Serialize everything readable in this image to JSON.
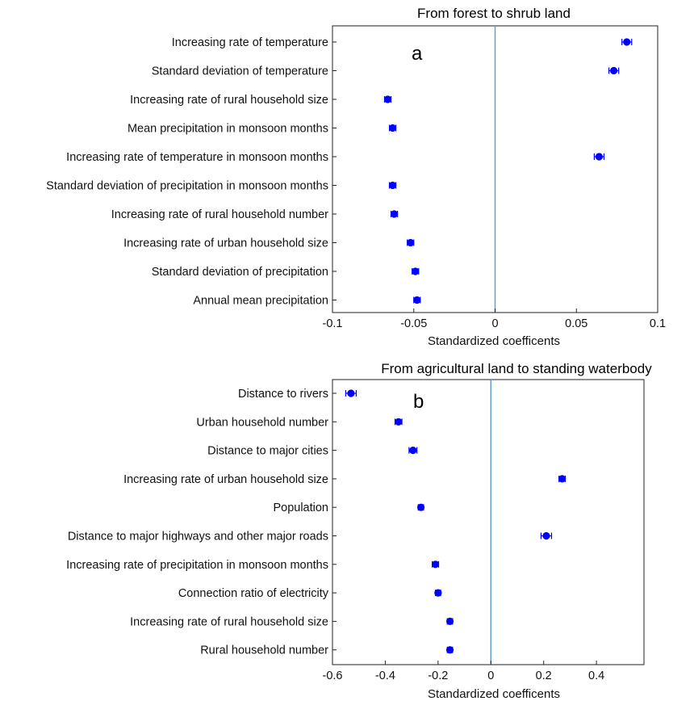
{
  "chart_data": [
    {
      "type": "scatter",
      "title": "From forest to shrub land",
      "panel_label": "a",
      "xlabel": "Standardized coefficents",
      "xlim": [
        -0.1,
        0.1
      ],
      "xticks": [
        "-0.1",
        "-0.05",
        "0",
        "0.05",
        "0.1"
      ],
      "xtick_values": [
        -0.1,
        -0.05,
        0,
        0.05,
        0.1
      ],
      "reference_line": 0,
      "grid": false,
      "marker_color": "#0000ff",
      "reference_line_color": "#5b9bd5",
      "categories": [
        "Increasing rate of temperature",
        "Standard deviation of temperature",
        "Increasing rate of rural household size",
        "Mean precipitation in monsoon months",
        "Increasing rate of temperature in monsoon months",
        "Standard deviation of precipitation in monsoon months",
        "Increasing rate of rural household number",
        "Increasing rate of urban household size",
        "Standard deviation of precipitation",
        "Annual mean precipitation"
      ],
      "values": [
        0.081,
        0.073,
        -0.066,
        -0.063,
        0.064,
        -0.063,
        -0.062,
        -0.052,
        -0.049,
        -0.048
      ],
      "errors": [
        0.003,
        0.003,
        0.002,
        0.002,
        0.003,
        0.002,
        0.002,
        0.002,
        0.002,
        0.002
      ]
    },
    {
      "type": "scatter",
      "title": "From agricultural land to standing waterbody",
      "panel_label": "b",
      "xlabel": "Standardized coefficents",
      "xlim": [
        -0.6,
        0.58
      ],
      "xticks": [
        "-0.6",
        "-0.4",
        "-0.2",
        "0",
        "0.2",
        "0.4"
      ],
      "xtick_values": [
        -0.6,
        -0.4,
        -0.2,
        0,
        0.2,
        0.4
      ],
      "reference_line": 0,
      "grid": false,
      "marker_color": "#0000ff",
      "reference_line_color": "#5b9bd5",
      "categories": [
        "Distance to rivers",
        "Urban household number",
        "Distance to major cities",
        "Increasing rate of urban household size",
        "Population",
        "Distance to major highways and other major roads",
        "Increasing rate of precipitation in monsoon months",
        "Connection ratio of electricity",
        "Increasing rate of rural household size",
        "Rural household number"
      ],
      "values": [
        -0.53,
        -0.35,
        -0.295,
        0.27,
        -0.265,
        0.21,
        -0.21,
        -0.2,
        -0.155,
        -0.155
      ],
      "errors": [
        0.02,
        0.013,
        0.015,
        0.012,
        0.01,
        0.02,
        0.012,
        0.01,
        0.01,
        0.01
      ]
    }
  ]
}
